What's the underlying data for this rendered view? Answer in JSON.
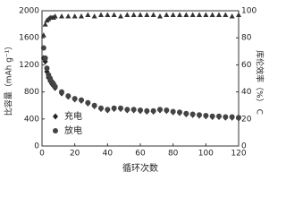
{
  "chart_data": {
    "type": "scatter",
    "xlabel": "循环次数",
    "ylabel": "比容量（mAh g⁻¹）",
    "y2label": "库伦效率（%） C",
    "x": [
      1,
      2,
      3,
      4,
      5,
      6,
      7,
      8,
      12,
      16,
      20,
      24,
      28,
      32,
      36,
      40,
      44,
      48,
      52,
      56,
      60,
      64,
      68,
      72,
      76,
      80,
      84,
      88,
      92,
      96,
      100,
      104,
      108,
      112,
      116,
      120
    ],
    "series": [
      {
        "name": "充电",
        "marker": "diamond",
        "color": "#222222",
        "axis": "y",
        "values": [
          1300,
          1250,
          1100,
          1010,
          960,
          920,
          890,
          860,
          780,
          730,
          690,
          670,
          630,
          590,
          550,
          530,
          550,
          550,
          530,
          530,
          520,
          510,
          510,
          530,
          520,
          500,
          490,
          470,
          460,
          450,
          440,
          430,
          430,
          420,
          420,
          410
        ]
      },
      {
        "name": "放电",
        "marker": "circle",
        "color": "#444444",
        "axis": "y",
        "values": [
          1450,
          1300,
          1150,
          1050,
          1000,
          950,
          920,
          880,
          800,
          740,
          700,
          680,
          640,
          600,
          560,
          540,
          560,
          560,
          540,
          540,
          530,
          520,
          520,
          540,
          530,
          510,
          500,
          480,
          470,
          460,
          450,
          440,
          440,
          430,
          430,
          420
        ]
      },
      {
        "marker": "triangle",
        "color": "#333333",
        "axis": "y2",
        "values": [
          82,
          90,
          93,
          94,
          95,
          95,
          95,
          96,
          96,
          96,
          96,
          96,
          97,
          96,
          97,
          97,
          97,
          96,
          97,
          97,
          97,
          97,
          97,
          96,
          97,
          97,
          97,
          97,
          97,
          97,
          97,
          97,
          97,
          97,
          96,
          97
        ]
      }
    ],
    "xlim": [
      0,
      120
    ],
    "xticks": [
      0,
      20,
      40,
      60,
      80,
      100,
      120
    ],
    "ylim": [
      0,
      2000
    ],
    "yticks": [
      0,
      400,
      800,
      1200,
      1600,
      2000
    ],
    "y2lim": [
      0,
      100
    ],
    "y2ticks": [
      0,
      20,
      40,
      60,
      80,
      100
    ]
  }
}
